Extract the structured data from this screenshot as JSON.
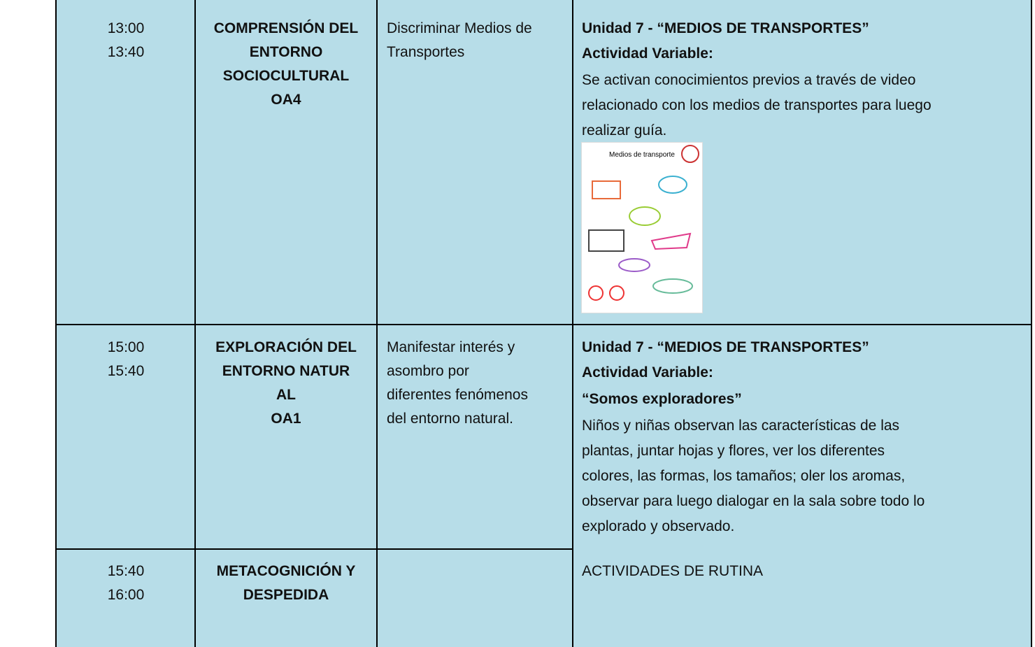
{
  "rows": [
    {
      "time": [
        "13:00",
        "13:40"
      ],
      "subject": [
        "COMPRENSIÓN DEL",
        "ENTORNO",
        "SOCIOCULTURAL",
        "OA4"
      ],
      "objective": [
        "Discriminar Medios de",
        "Transportes"
      ],
      "activity": {
        "unit": "Unidad 7 - “MEDIOS DE TRANSPORTES”",
        "label": "Actividad Variable:",
        "text": [
          "Se activan conocimientos previos a través de video",
          "relacionado con los medios de transportes para luego",
          "realizar guía."
        ],
        "image_title": "Medios de transporte"
      }
    },
    {
      "time": [
        "15:00",
        "15:40"
      ],
      "subject": [
        "EXPLORACIÓN DEL",
        "ENTORNO NATUR",
        "AL",
        "OA1"
      ],
      "objective": [
        "Manifestar interés y",
        "asombro por",
        "diferentes fenómenos",
        "del entorno natural."
      ],
      "activity": {
        "unit": "Unidad 7 - “MEDIOS DE TRANSPORTES”",
        "label": "Actividad Variable:",
        "name": "“Somos exploradores”",
        "text": [
          "Niños y niñas observan las características de las",
          "plantas, juntar hojas y flores, ver los diferentes",
          "colores, las formas, los tamaños; oler los aromas,",
          "observar para luego dialogar en la sala sobre todo lo",
          "explorado y observado."
        ]
      }
    },
    {
      "time": [
        "15:40",
        "16:00"
      ],
      "subject": [
        "METACOGNICIÓN Y",
        "DESPEDIDA"
      ],
      "activity": {
        "text": [
          "ACTIVIDADES DE RUTINA"
        ]
      }
    }
  ]
}
